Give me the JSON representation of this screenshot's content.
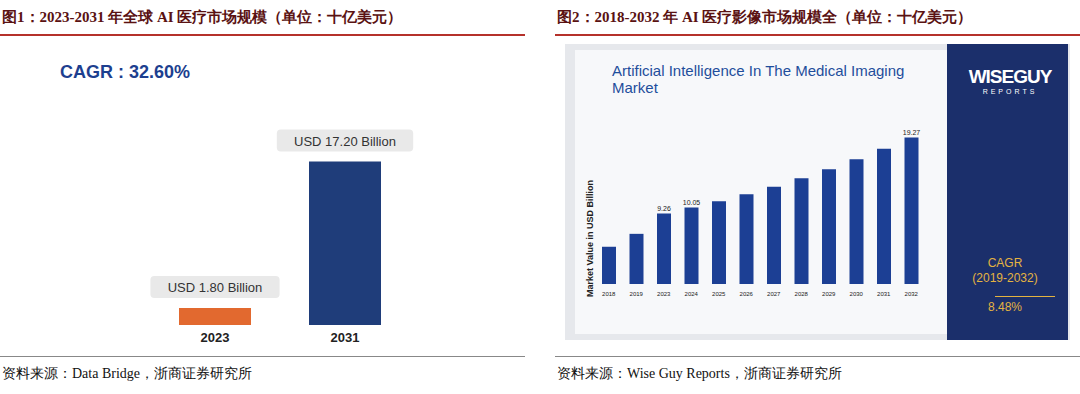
{
  "chart_data": [
    {
      "type": "bar",
      "title": "图1：2023-2031 年全球 AI 医疗市场规模（单位：十亿美元）",
      "annotation": "CAGR : 32.60%",
      "categories": [
        "2023",
        "2031"
      ],
      "values": [
        1.8,
        17.2
      ],
      "value_labels": [
        "USD 1.80 Billion",
        "USD 17.20 Billion"
      ],
      "colors": [
        "#e2692f",
        "#1f3d7a"
      ],
      "data_labels": true,
      "tick_labels": "x",
      "grid": false,
      "source": "资料来源：Data Bridge，浙商证券研究所"
    },
    {
      "type": "bar",
      "title": "图2：2018-2032 年 AI 医疗影像市场规模全（单位：十亿美元）",
      "subtitle": "Artificial Intelligence In The Medical Imaging Market",
      "y_label": "Market Value in USD Billion",
      "categories": [
        "2018",
        "2019",
        "2023",
        "2024",
        "2025",
        "2026",
        "2027",
        "2028",
        "2029",
        "2030",
        "2031",
        "2032"
      ],
      "values": [
        4.9,
        6.6,
        9.26,
        10.05,
        10.9,
        11.8,
        12.8,
        13.9,
        15.1,
        16.4,
        17.8,
        19.27
      ],
      "value_labels": [
        null,
        null,
        "9.26",
        "10.05",
        null,
        null,
        null,
        null,
        null,
        null,
        null,
        "19.27"
      ],
      "color": "#1c3f94",
      "data_labels": true,
      "tick_labels": "x",
      "grid": false,
      "logo": "WISEGUY",
      "logo_sub": "REPORTS",
      "annotation": "CAGR",
      "annotation_period": "(2019-2032)",
      "annotation_value": "8.48%",
      "source": "资料来源：Wise Guy Reports，浙商证券研究所"
    }
  ]
}
